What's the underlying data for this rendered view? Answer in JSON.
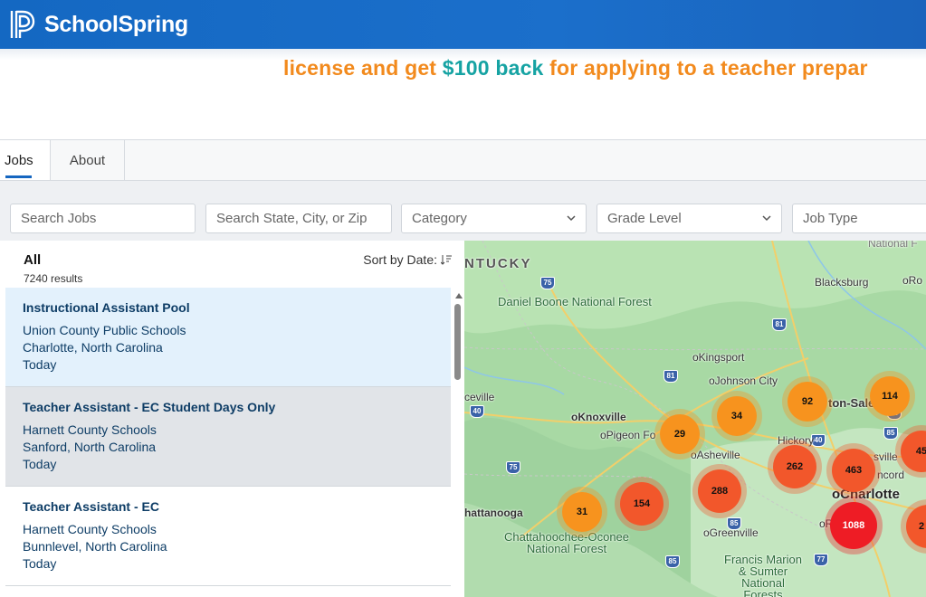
{
  "header": {
    "brand": "SchoolSpring"
  },
  "promo": {
    "text_before": "license and get ",
    "highlight": "$100 back",
    "text_after": " for applying to a teacher prepar"
  },
  "tabs": [
    {
      "label": "Jobs",
      "active": true
    },
    {
      "label": "About",
      "active": false
    }
  ],
  "filters": {
    "search_jobs_placeholder": "Search Jobs",
    "location_placeholder": "Search State, City, or Zip",
    "category": "Category",
    "grade_level": "Grade Level",
    "job_type": "Job Type"
  },
  "list": {
    "heading": "All",
    "results": "7240 results",
    "sort_label": "Sort by Date:",
    "jobs": [
      {
        "title": "Instructional Assistant Pool",
        "employer": "Union County Public Schools",
        "location": "Charlotte, North Carolina",
        "posted": "Today"
      },
      {
        "title": "Teacher Assistant - EC Student Days Only",
        "employer": "Harnett County Schools",
        "location": "Sanford, North Carolina",
        "posted": "Today"
      },
      {
        "title": "Teacher Assistant - EC",
        "employer": "Harnett County Schools",
        "location": "Bunnlevel, North Carolina",
        "posted": "Today"
      }
    ]
  },
  "map": {
    "labels": {
      "kentucky": "NTUCKY",
      "national_top": "National F",
      "daniel_boone": "Daniel Boone\nNational Forest",
      "blacksburg": "Blacksburg",
      "ro": "oRo",
      "kingsport": "oKingsport",
      "johnson_city": "oJohnson City",
      "knoxville": "oKnoxville",
      "pigeon_forge": "oPigeon Fo",
      "asheville": "oAsheville",
      "hickory": "Hickory",
      "winston": "ton-Sale",
      "sville": "sville",
      "concord": "ncord",
      "charlotte": "oCharlotte",
      "greenville": "oGreenville",
      "chattanooga": "hattanooga",
      "ceville": "ceville",
      "chattahoochee": "Chattahoochee-Oconee\nNational Forest",
      "francis_marion": "Francis Marion\n& Sumter\nNational\nForests",
      "ro2": "oR"
    },
    "shields": [
      "75",
      "81",
      "81",
      "40",
      "75",
      "40",
      "85",
      "85",
      "85",
      "77",
      "40"
    ],
    "clusters": [
      {
        "count": "29",
        "color": "#f7931e"
      },
      {
        "count": "34",
        "color": "#f7931e"
      },
      {
        "count": "92",
        "color": "#f7931e"
      },
      {
        "count": "114",
        "color": "#f7931e"
      },
      {
        "count": "45",
        "color": "#f2572b"
      },
      {
        "count": "31",
        "color": "#f7931e"
      },
      {
        "count": "154",
        "color": "#f2572b"
      },
      {
        "count": "288",
        "color": "#f2572b"
      },
      {
        "count": "262",
        "color": "#f2572b"
      },
      {
        "count": "463",
        "color": "#f2572b"
      },
      {
        "count": "1088",
        "color": "#ee1c25"
      },
      {
        "count": "2",
        "color": "#f2572b"
      }
    ]
  },
  "colors": {
    "brand_blue": "#1468c2",
    "promo_orange": "#f28a1d",
    "promo_teal": "#16a3a3",
    "job_title": "#0e3d66"
  }
}
